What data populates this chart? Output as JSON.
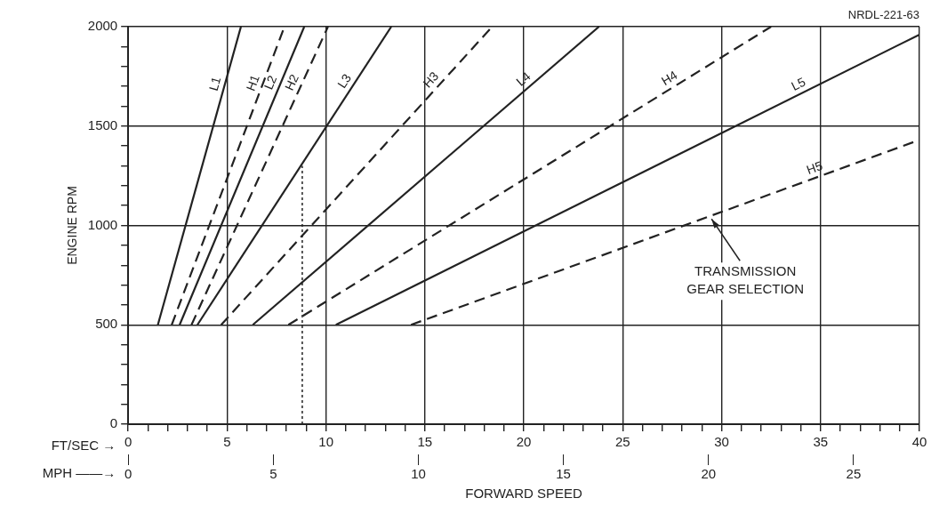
{
  "chart_data": {
    "type": "line",
    "xlabel": "FORWARD SPEED",
    "ylabel": "ENGINE RPM",
    "annotations": [
      "NRDL-221-63",
      {
        "text": "TRANSMISSION GEAR SELECTION",
        "x": 29.4,
        "y": 1046
      },
      "FT/SEC →",
      "MPH ——→"
    ],
    "xlim": [
      0,
      40
    ],
    "xticks": [
      0,
      {
        "value": 1,
        "label": null
      },
      {
        "value": 2,
        "label": null
      },
      {
        "value": 3,
        "label": null
      },
      {
        "value": 4,
        "label": null
      },
      5,
      {
        "value": 6,
        "label": null
      },
      {
        "value": 7,
        "label": null
      },
      {
        "value": 8,
        "label": null
      },
      {
        "value": 9,
        "label": null
      },
      10,
      {
        "value": 11,
        "label": null
      },
      {
        "value": 12,
        "label": null
      },
      {
        "value": 13,
        "label": null
      },
      {
        "value": 14,
        "label": null
      },
      15,
      {
        "value": 16,
        "label": null
      },
      {
        "value": 17,
        "label": null
      },
      {
        "value": 18,
        "label": null
      },
      {
        "value": 19,
        "label": null
      },
      20,
      {
        "value": 21,
        "label": null
      },
      {
        "value": 22,
        "label": null
      },
      {
        "value": 23,
        "label": null
      },
      {
        "value": 24,
        "label": null
      },
      25,
      {
        "value": 26,
        "label": null
      },
      {
        "value": 27,
        "label": null
      },
      {
        "value": 28,
        "label": null
      },
      {
        "value": 29,
        "label": null
      },
      30,
      {
        "value": 31,
        "label": null
      },
      {
        "value": 32,
        "label": null
      },
      {
        "value": 33,
        "label": null
      },
      {
        "value": 34,
        "label": null
      },
      35,
      {
        "value": 36,
        "label": null
      },
      {
        "value": 37,
        "label": null
      },
      {
        "value": 38,
        "label": null
      },
      {
        "value": 39,
        "label": null
      },
      40
    ],
    "x2lim": [
      0,
      27.27
    ],
    "x2ticks": [
      0,
      5,
      10,
      15,
      20,
      25
    ],
    "ylim": [
      0,
      2000
    ],
    "yticks": [
      0,
      {
        "value": 100,
        "label": null
      },
      {
        "value": 200,
        "label": null
      },
      {
        "value": 300,
        "label": null
      },
      {
        "value": 400,
        "label": null
      },
      500,
      {
        "value": 600,
        "label": null
      },
      {
        "value": 700,
        "label": null
      },
      {
        "value": 800,
        "label": null
      },
      {
        "value": 900,
        "label": null
      },
      1000,
      {
        "value": 1100,
        "label": null
      },
      {
        "value": 1200,
        "label": null
      },
      {
        "value": 1300,
        "label": null
      },
      {
        "value": 1400,
        "label": null
      },
      1500,
      {
        "value": 1600,
        "label": null
      },
      {
        "value": 1700,
        "label": null
      },
      {
        "value": 1800,
        "label": null
      },
      {
        "value": 1900,
        "label": null
      },
      2000
    ],
    "grid": true,
    "legend": false,
    "marker": "none",
    "series": [
      {
        "name": "L1",
        "color": "#222222",
        "line_style": "solid",
        "x": [
          1.5,
          5.7
        ],
        "values": [
          500,
          2000
        ]
      },
      {
        "name": "H1",
        "color": "#222222",
        "line_style": "dashed",
        "x": [
          2.2,
          7.9
        ],
        "values": [
          500,
          2000
        ]
      },
      {
        "name": "L2",
        "color": "#222222",
        "line_style": "solid",
        "x": [
          2.6,
          8.9
        ],
        "values": [
          500,
          2000
        ]
      },
      {
        "name": "H2",
        "color": "#222222",
        "line_style": "dashed",
        "x": [
          3.2,
          10.1
        ],
        "values": [
          500,
          2000
        ]
      },
      {
        "name": "L3",
        "color": "#222222",
        "line_style": "solid",
        "x": [
          3.5,
          13.3
        ],
        "values": [
          500,
          2000
        ]
      },
      {
        "name": "H3",
        "color": "#222222",
        "line_style": "dashed",
        "x": [
          4.7,
          18.4
        ],
        "values": [
          500,
          2000
        ]
      },
      {
        "name": "L4",
        "color": "#222222",
        "line_style": "solid",
        "x": [
          6.3,
          23.8
        ],
        "values": [
          500,
          2000
        ]
      },
      {
        "name": "H4",
        "color": "#222222",
        "line_style": "dashed",
        "x": [
          8.1,
          32.5
        ],
        "values": [
          500,
          2000
        ]
      },
      {
        "name": "L5",
        "color": "#222222",
        "line_style": "solid",
        "x": [
          10.5,
          40
        ],
        "values": [
          500,
          1960
        ]
      },
      {
        "name": "H5",
        "color": "#222222",
        "line_style": "dashed",
        "x": [
          14.3,
          40
        ],
        "values": [
          500,
          1430
        ]
      },
      {
        "color": "#222222",
        "line_style": "dotted",
        "x": [
          8.8,
          8.8
        ],
        "values": [
          0,
          1300
        ]
      }
    ]
  }
}
